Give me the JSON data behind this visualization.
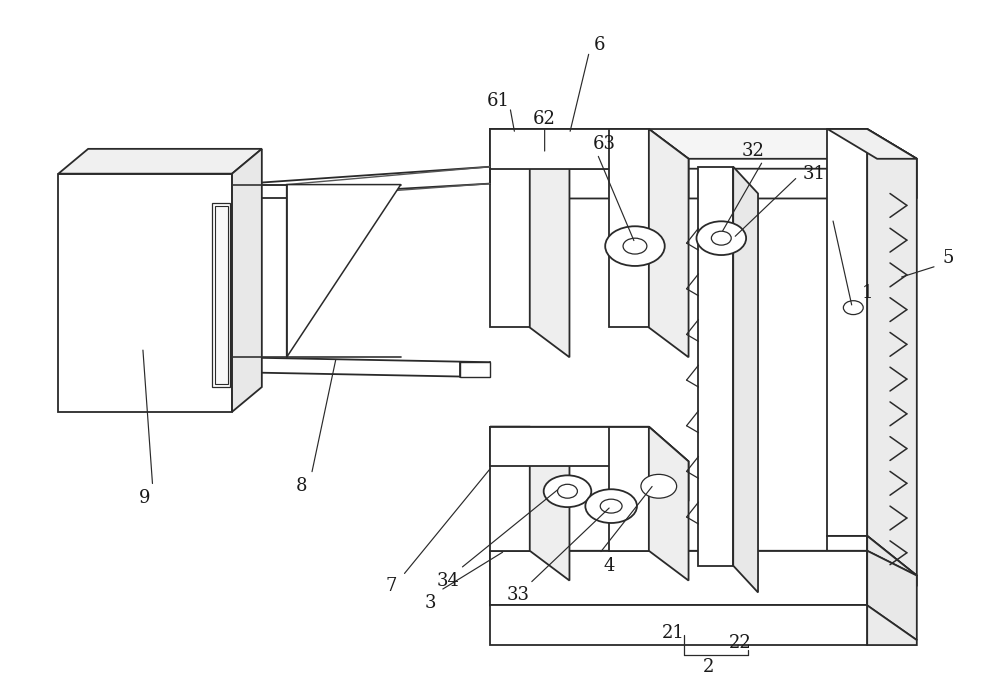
{
  "bg_color": "#ffffff",
  "line_color": "#2a2a2a",
  "label_color": "#1a1a1a",
  "figsize": [
    10.0,
    6.77
  ],
  "dpi": 100,
  "lw": 1.3,
  "label_fs": 13
}
